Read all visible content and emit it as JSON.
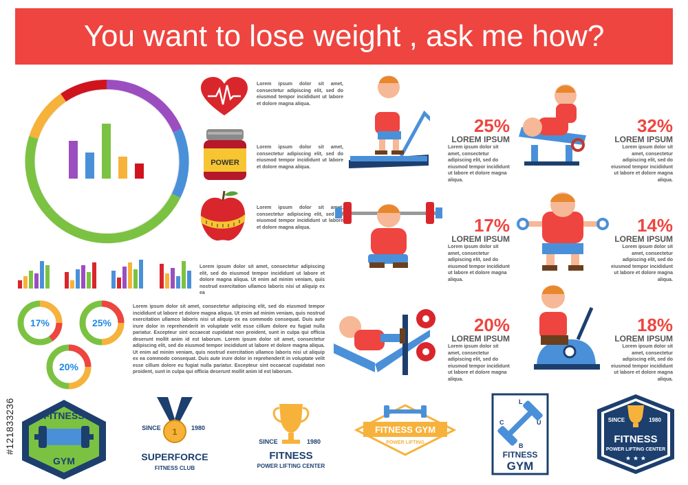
{
  "title": "You want to lose weight , ask me how?",
  "icons": {
    "heart_text": "Lorem ipsum dolor sit amet, consectetur adipiscing elit, sed do eiusmod tempor incididunt ut labore et dolore magna aliqua.",
    "power_label": "POWER",
    "power_text": "Lorem ipsum dolor sit amet, consectetur adipiscing elit, sed do eiusmod tempor incididunt ut labore et dolore magna aliqua.",
    "apple_text": "Lorem ipsum dolor sit amet, consectetur adipiscing elit, sed do eiusmod tempor incididunt ut labore et dolore magna aliqua."
  },
  "bars_text": "Lorem ipsum dolor sit amet, consectetur adipiscing elit, sed do eiusmod tempor incididunt ut labore et dolore magna aliqua. Ut enim ad minim veniam, quis nostrud exercitation ullamco laboris nisi ut aliquip ex ea",
  "long_text": "Lorem ipsum dolor sit amet, consectetur adipiscing elit, sed do eiusmod tempor incididunt ut labore et dolore magna aliqua. Ut enim ad minim veniam, quis nostrud exercitation ullamco laboris nisi ut aliquip ex ea commodo consequat. Duis aute irure dolor in reprehenderit in voluptate velit esse cillum dolore eu fugiat nulla pariatur. Excepteur sint occaecat cupidatat non proident, sunt in culpa qui officia deserunt mollit anim id est laborum. Lorem ipsum dolor sit amet, consectetur adipiscing elit, sed do eiusmod tempor incididunt ut labore et dolore magna aliqua. Ut enim ad minim veniam, quis nostrud exercitation ullamco laboris nisi ut aliquip ex ea commodo consequat. Duis aute irure dolor in reprehenderit in voluptate velit esse cillum dolore eu fugiat nulla pariatur. Excepteur sint occaecat cupidatat non proident, sunt in culpa qui officia deserunt mollit anim id est laborum.",
  "rings": [
    {
      "label": "17%",
      "value": 17
    },
    {
      "label": "25%",
      "value": 25
    },
    {
      "label": "20%",
      "value": 20
    }
  ],
  "stats": [
    {
      "pct": "25%",
      "title": "LOREM IPSUM",
      "text": "Lorem ipsum dolor sit amet, consectetur adipiscing elit, sed do eiusmod tempor incididunt ut labore et dolore magna aliqua."
    },
    {
      "pct": "32%",
      "title": "LOREM IPSUM",
      "text": "Lorem ipsum dolor sit amet, consectetur adipiscing elit, sed do eiusmod tempor incididunt ut labore et dolore magna aliqua."
    },
    {
      "pct": "17%",
      "title": "LOREM IPSUM",
      "text": "Lorem ipsum dolor sit amet, consectetur adipiscing elit, sed do eiusmod tempor incididunt ut labore et dolore magna aliqua."
    },
    {
      "pct": "14%",
      "title": "LOREM IPSUM",
      "text": "Lorem ipsum dolor sit amet, consectetur adipiscing elit, sed do eiusmod tempor incididunt ut labore et dolore magna aliqua."
    },
    {
      "pct": "20%",
      "title": "LOREM IPSUM",
      "text": "Lorem ipsum dolor sit amet, consectetur adipiscing elit, sed do eiusmod tempor incididunt ut labore et dolore magna aliqua."
    },
    {
      "pct": "18%",
      "title": "LOREM IPSUM",
      "text": "Lorem ipsum dolor sit amet, consectetur adipiscing elit, sed do eiusmod tempor incididunt ut labore et dolore magna aliqua."
    }
  ],
  "logos": {
    "l1_top": "FITNESS",
    "l1_bottom": "GYM",
    "l2_since": "SINCE",
    "l2_year": "1980",
    "l2_medal": "1",
    "l2_name": "SUPERFORCE",
    "l2_sub": "FITNESS CLUB",
    "l3_since": "SINCE",
    "l3_year": "1980",
    "l3_name": "FITNESS",
    "l3_sub": "POWER LIFTING CENTER",
    "l4_name": "FITNESS GYM",
    "l4_sub": "POWER LIFTING",
    "l5_c": "C",
    "l5_l": "L",
    "l5_u": "U",
    "l5_b": "B",
    "l5_name": "FITNESS",
    "l5_sub": "GYM",
    "l6_since": "SINCE",
    "l6_year": "1980",
    "l6_name": "FITNESS",
    "l6_sub": "POWER LIFTING CENTER"
  },
  "stock_id": "#121833236",
  "colors": {
    "red": "#ee4540",
    "purple": "#9c4ec0",
    "blue": "#4a90d9",
    "green": "#7cc242",
    "orange": "#f7b23b",
    "darkred": "#d0141e",
    "navy": "#1c3f6e"
  }
}
